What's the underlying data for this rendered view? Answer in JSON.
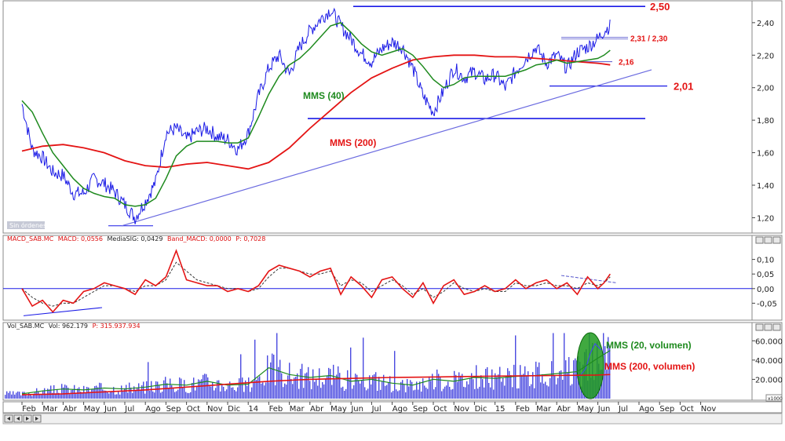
{
  "chart_data": [
    {
      "type": "line",
      "panel": "price",
      "y_ticks": [
        "2,40",
        "2,20",
        "2,00",
        "1,80",
        "1,60",
        "1,40",
        "1,20"
      ],
      "ylim": [
        1.12,
        2.52
      ],
      "grid": false,
      "watermark": "Sin órdenes",
      "annotations": [
        {
          "text": "2,50",
          "value": 2.5,
          "kind": "resistance"
        },
        {
          "text": "2,31 / 2,30",
          "value": 2.305,
          "kind": "level"
        },
        {
          "text": "2,16",
          "value": 2.16,
          "kind": "level"
        },
        {
          "text": "2,01",
          "value": 2.01,
          "kind": "support"
        }
      ],
      "support_line": 1.81,
      "labels": {
        "mma40": "MMS (40)",
        "mma200": "MMS (200)"
      },
      "series": [
        {
          "key": "price",
          "color": "#1a1ae6",
          "months": [
            0,
            0.5,
            1,
            1.5,
            2,
            2.5,
            3,
            3.5,
            4,
            4.5,
            5,
            5.5,
            6,
            6.5,
            7,
            7.5,
            8,
            8.5,
            9,
            9.5,
            10,
            10.5,
            11,
            11.5,
            12,
            12.5,
            13,
            13.5,
            14,
            14.5,
            15,
            15.5,
            16,
            16.5,
            17,
            17.5,
            18,
            18.5,
            19,
            19.5,
            20,
            20.5,
            21,
            21.5,
            22,
            22.5,
            23,
            23.5,
            24,
            24.5,
            25,
            25.5,
            26,
            26.5,
            27,
            27.5,
            28,
            28.3,
            28.6
          ],
          "values": [
            1.9,
            1.62,
            1.57,
            1.48,
            1.46,
            1.35,
            1.35,
            1.44,
            1.41,
            1.36,
            1.28,
            1.2,
            1.3,
            1.42,
            1.72,
            1.75,
            1.68,
            1.73,
            1.75,
            1.7,
            1.68,
            1.62,
            1.72,
            1.95,
            2.12,
            2.2,
            2.08,
            2.25,
            2.35,
            2.42,
            2.48,
            2.38,
            2.3,
            2.21,
            2.16,
            2.24,
            2.28,
            2.25,
            2.12,
            1.95,
            1.85,
            1.98,
            2.12,
            2.06,
            2.1,
            2.05,
            2.08,
            2.0,
            2.1,
            2.18,
            2.25,
            2.15,
            2.2,
            2.12,
            2.22,
            2.25,
            2.3,
            2.35,
            2.38
          ]
        },
        {
          "key": "mma40",
          "color": "#1e8a1e",
          "months": [
            0,
            0.5,
            1,
            1.5,
            2,
            2.5,
            3,
            3.5,
            4,
            4.5,
            5,
            5.5,
            6,
            6.5,
            7,
            7.5,
            8,
            8.5,
            9,
            9.5,
            10,
            10.5,
            11,
            11.5,
            12,
            12.5,
            13,
            13.5,
            14,
            14.5,
            15,
            15.5,
            16,
            16.5,
            17,
            17.5,
            18,
            18.5,
            19,
            19.5,
            20,
            20.5,
            21,
            21.5,
            22,
            22.5,
            23,
            23.5,
            24,
            24.5,
            25,
            25.5,
            26,
            26.5,
            27,
            27.5,
            28,
            28.3,
            28.6
          ],
          "values": [
            1.92,
            1.85,
            1.72,
            1.6,
            1.52,
            1.44,
            1.38,
            1.35,
            1.33,
            1.32,
            1.28,
            1.27,
            1.28,
            1.32,
            1.44,
            1.58,
            1.64,
            1.67,
            1.67,
            1.67,
            1.66,
            1.66,
            1.69,
            1.82,
            1.96,
            2.07,
            2.14,
            2.18,
            2.24,
            2.31,
            2.38,
            2.4,
            2.34,
            2.27,
            2.22,
            2.2,
            2.22,
            2.24,
            2.2,
            2.13,
            2.05,
            2.0,
            2.02,
            2.06,
            2.07,
            2.07,
            2.07,
            2.07,
            2.09,
            2.11,
            2.14,
            2.15,
            2.17,
            2.15,
            2.16,
            2.17,
            2.18,
            2.2,
            2.23
          ]
        },
        {
          "key": "mma200",
          "color": "#e41414",
          "months": [
            0,
            1,
            2,
            3,
            4,
            5,
            6,
            7,
            8,
            9,
            10,
            11,
            12,
            13,
            14,
            15,
            16,
            17,
            18,
            19,
            20,
            21,
            22,
            23,
            24,
            25,
            26,
            27,
            28,
            28.6
          ],
          "values": [
            1.61,
            1.64,
            1.65,
            1.63,
            1.6,
            1.55,
            1.52,
            1.51,
            1.53,
            1.54,
            1.52,
            1.5,
            1.54,
            1.63,
            1.75,
            1.86,
            1.97,
            2.06,
            2.12,
            2.17,
            2.19,
            2.2,
            2.2,
            2.19,
            2.19,
            2.18,
            2.17,
            2.16,
            2.15,
            2.14
          ]
        }
      ]
    },
    {
      "type": "line",
      "panel": "macd",
      "header": {
        "prefix": "MACD_SAB.MC",
        "macd": "MACD: 0,0556",
        "signal": "MediaSIG: 0,0429",
        "band": "Band_MACD: 0,0000",
        "p": "P: 0,7028"
      },
      "y_ticks": [
        "0,10",
        "0,05",
        "0,00",
        "-0,05"
      ],
      "ylim": [
        -0.1,
        0.15
      ],
      "series": [
        {
          "key": "macd",
          "color": "#e41414",
          "months": [
            0,
            0.5,
            1,
            1.5,
            2,
            2.5,
            3,
            3.5,
            4,
            4.5,
            5,
            5.5,
            6,
            6.5,
            7,
            7.5,
            8,
            8.5,
            9,
            9.5,
            10,
            10.5,
            11,
            11.5,
            12,
            12.5,
            13,
            13.5,
            14,
            14.5,
            15,
            15.5,
            16,
            16.5,
            17,
            17.5,
            18,
            18.5,
            19,
            19.5,
            20,
            20.5,
            21,
            21.5,
            22,
            22.5,
            23,
            23.5,
            24,
            24.5,
            25,
            25.5,
            26,
            26.5,
            27,
            27.5,
            28,
            28.3,
            28.6
          ],
          "values": [
            0.0,
            -0.06,
            -0.04,
            -0.08,
            -0.04,
            -0.05,
            -0.01,
            0.0,
            0.02,
            0.01,
            0.0,
            -0.02,
            0.03,
            0.01,
            0.04,
            0.13,
            0.03,
            0.02,
            0.01,
            0.01,
            -0.01,
            0.0,
            -0.01,
            0.01,
            0.06,
            0.08,
            0.07,
            0.06,
            0.04,
            0.06,
            0.07,
            -0.02,
            0.04,
            0.01,
            -0.03,
            0.03,
            0.04,
            0.0,
            -0.03,
            0.02,
            -0.05,
            0.01,
            0.03,
            -0.02,
            -0.01,
            0.01,
            -0.01,
            0.0,
            0.03,
            0.0,
            0.02,
            0.03,
            0.0,
            0.02,
            -0.02,
            0.04,
            0.0,
            0.02,
            0.05
          ]
        },
        {
          "key": "signal",
          "color": "#333333",
          "months": [
            0,
            0.5,
            1,
            1.5,
            2,
            2.5,
            3,
            3.5,
            4,
            4.5,
            5,
            5.5,
            6,
            6.5,
            7,
            7.5,
            8,
            8.5,
            9,
            9.5,
            10,
            10.5,
            11,
            11.5,
            12,
            12.5,
            13,
            13.5,
            14,
            14.5,
            15,
            15.5,
            16,
            16.5,
            17,
            17.5,
            18,
            18.5,
            19,
            19.5,
            20,
            20.5,
            21,
            21.5,
            22,
            22.5,
            23,
            23.5,
            24,
            24.5,
            25,
            25.5,
            26,
            26.5,
            27,
            27.5,
            28,
            28.3,
            28.6
          ],
          "values": [
            0.0,
            -0.03,
            -0.05,
            -0.06,
            -0.05,
            -0.05,
            -0.03,
            -0.01,
            0.01,
            0.01,
            0.0,
            -0.01,
            0.01,
            0.01,
            0.03,
            0.09,
            0.06,
            0.03,
            0.02,
            0.01,
            0.0,
            0.0,
            -0.01,
            0.0,
            0.04,
            0.07,
            0.07,
            0.06,
            0.05,
            0.05,
            0.06,
            0.01,
            0.03,
            0.02,
            -0.01,
            0.01,
            0.03,
            0.01,
            -0.02,
            0.0,
            -0.03,
            -0.01,
            0.02,
            0.0,
            -0.01,
            0.0,
            -0.01,
            -0.01,
            0.02,
            0.01,
            0.01,
            0.02,
            0.01,
            0.01,
            0.0,
            0.02,
            0.01,
            0.02,
            0.04
          ]
        }
      ]
    },
    {
      "type": "bar",
      "panel": "volume",
      "header": {
        "prefix": "Vol_SAB.MC",
        "vol": "Vol: 962.179",
        "p": "P: 315.937.934"
      },
      "y_ticks": [
        "60.000",
        "40.000",
        "20.000"
      ],
      "ylim": [
        0,
        70000
      ],
      "axis_note": "x1000",
      "labels": {
        "mm20": "MMS (20, volumen)",
        "mm200": "MMS (200, volumen)"
      },
      "series": [
        {
          "key": "mm20",
          "color": "#1e8a1e",
          "months": [
            0,
            1,
            2,
            3,
            4,
            5,
            6,
            7,
            8,
            9,
            10,
            11,
            12,
            13,
            14,
            15,
            16,
            17,
            18,
            19,
            20,
            21,
            22,
            23,
            24,
            25,
            26,
            27,
            28,
            28.6
          ],
          "values": [
            5000,
            8000,
            10000,
            9000,
            11000,
            10000,
            12000,
            15000,
            14000,
            18000,
            14000,
            15000,
            32000,
            25000,
            22000,
            24000,
            18000,
            20000,
            16000,
            14000,
            20000,
            18000,
            22000,
            21000,
            23000,
            24000,
            26000,
            28000,
            42000,
            50000
          ]
        },
        {
          "key": "mm200",
          "color": "#e41414",
          "months": [
            0,
            2,
            4,
            6,
            8,
            10,
            12,
            14,
            16,
            18,
            20,
            22,
            24,
            26,
            28,
            28.6
          ],
          "values": [
            4000,
            5000,
            7000,
            9000,
            12000,
            15000,
            18000,
            20000,
            21000,
            22000,
            22500,
            23000,
            23500,
            24000,
            24500,
            25000
          ]
        }
      ]
    }
  ],
  "x_axis": {
    "labels": [
      "Feb",
      "Mar",
      "Abr",
      "May",
      "Jun",
      "Jul",
      "Ago",
      "Sep",
      "Oct",
      "Nov",
      "Dic",
      "14",
      "Feb",
      "Mar",
      "Abr",
      "May",
      "Jun",
      "Jul",
      "Ago",
      "Sep",
      "Oct",
      "Nov",
      "Dic",
      "15",
      "Feb",
      "Mar",
      "Abr",
      "May",
      "Jun",
      "Jul",
      "Ago",
      "Sep",
      "Oct",
      "Nov"
    ]
  }
}
